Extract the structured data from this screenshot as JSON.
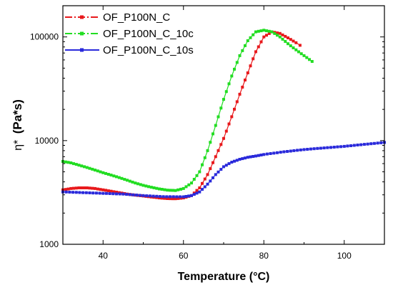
{
  "chart_data": {
    "type": "scatter",
    "title": "",
    "xlabel": "Temperature (°C)",
    "ylabel": "η* (Pa*s)",
    "ylabel_prefix": "η*",
    "ylabel_main": "(Pa*s)",
    "xlim": [
      30,
      110
    ],
    "ylim": [
      1000,
      200000
    ],
    "yscale": "log",
    "x_ticks": [
      "40",
      "60",
      "80",
      "100"
    ],
    "y_ticks": [
      "1000",
      "10000",
      "100000"
    ],
    "legend_position": "top-left",
    "grid": false,
    "series": [
      {
        "name": "OF_P100N_C",
        "color": "#e8191c",
        "x": [
          30,
          32,
          34,
          36,
          38,
          40,
          42,
          44,
          46,
          48,
          50,
          52,
          54,
          56,
          58,
          60,
          62,
          64,
          66,
          68,
          70,
          72,
          74,
          76,
          78,
          80,
          82,
          84,
          86,
          88,
          89
        ],
        "y": [
          3350,
          3450,
          3500,
          3500,
          3450,
          3350,
          3250,
          3150,
          3050,
          2980,
          2920,
          2860,
          2800,
          2760,
          2750,
          2800,
          2950,
          3500,
          4700,
          7000,
          10500,
          17000,
          28000,
          45000,
          72000,
          100000,
          112000,
          108000,
          98000,
          88000,
          83000
        ]
      },
      {
        "name": "OF_P100N_C_10c",
        "color": "#22dd22",
        "x": [
          30,
          32,
          34,
          36,
          38,
          40,
          42,
          44,
          46,
          48,
          50,
          52,
          54,
          56,
          58,
          60,
          62,
          64,
          66,
          68,
          70,
          72,
          74,
          76,
          78,
          80,
          82,
          84,
          86,
          88,
          90,
          92
        ],
        "y": [
          6300,
          6100,
          5800,
          5500,
          5200,
          4900,
          4650,
          4400,
          4150,
          3900,
          3700,
          3550,
          3420,
          3330,
          3300,
          3450,
          3900,
          5000,
          8000,
          14000,
          25000,
          42000,
          66000,
          92000,
          112000,
          116000,
          112000,
          100000,
          86000,
          75000,
          66000,
          58000
        ]
      },
      {
        "name": "OF_P100N_C_10s",
        "color": "#2a2adb",
        "x": [
          30,
          35,
          40,
          45,
          50,
          55,
          60,
          62,
          64,
          66,
          68,
          70,
          72,
          74,
          76,
          78,
          80,
          85,
          90,
          95,
          100,
          105,
          110
        ],
        "y": [
          3200,
          3150,
          3100,
          3050,
          2950,
          2880,
          2870,
          2950,
          3200,
          3800,
          4700,
          5600,
          6200,
          6600,
          6900,
          7100,
          7350,
          7800,
          8200,
          8500,
          8800,
          9200,
          9600
        ]
      }
    ]
  }
}
